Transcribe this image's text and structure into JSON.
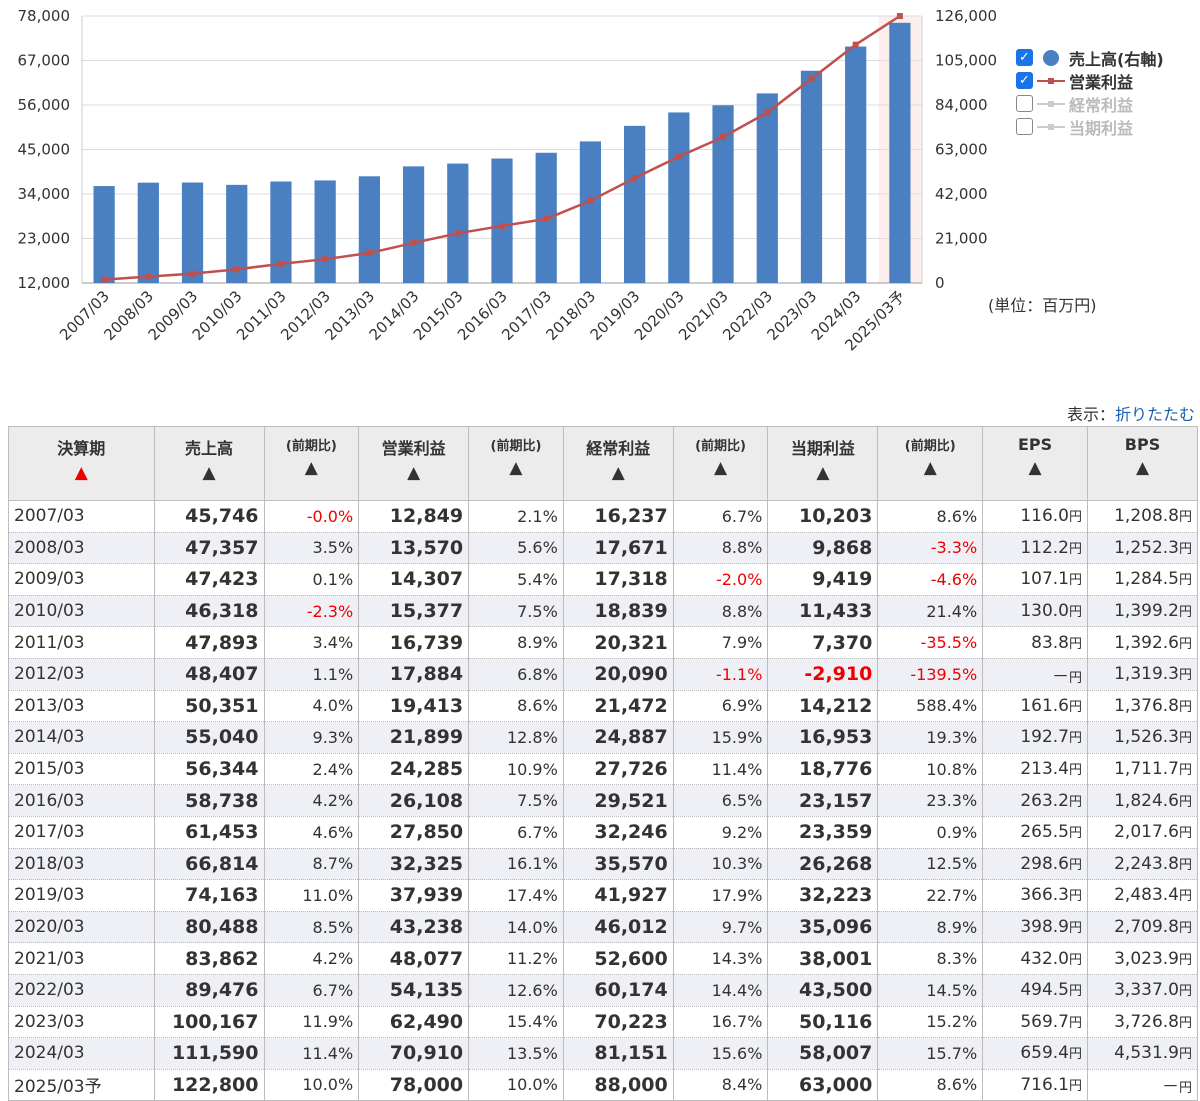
{
  "chart_data": {
    "type": "bar",
    "categories": [
      "2007/03",
      "2008/03",
      "2009/03",
      "2010/03",
      "2011/03",
      "2012/03",
      "2013/03",
      "2014/03",
      "2015/03",
      "2016/03",
      "2017/03",
      "2018/03",
      "2019/03",
      "2020/03",
      "2021/03",
      "2022/03",
      "2023/03",
      "2024/03",
      "2025/03予"
    ],
    "left_axis": {
      "ticks": [
        "78,000",
        "67,000",
        "56,000",
        "45,000",
        "34,000",
        "23,000",
        "12,000"
      ],
      "range": [
        12000,
        78000
      ]
    },
    "right_axis": {
      "ticks": [
        "126,000",
        "105,000",
        "84,000",
        "63,000",
        "42,000",
        "21,000",
        "0"
      ],
      "range": [
        0,
        126000
      ]
    },
    "series": [
      {
        "name": "売上高(右軸)",
        "axis": "right",
        "type": "bar",
        "color": "#4a7fc1",
        "values": [
          45746,
          47357,
          47423,
          46318,
          47893,
          48407,
          50351,
          55040,
          56344,
          58738,
          61453,
          66814,
          74163,
          80488,
          83862,
          89476,
          100167,
          111590,
          122800
        ]
      },
      {
        "name": "営業利益",
        "axis": "left",
        "type": "line",
        "color": "#c0504d",
        "values": [
          12849,
          13570,
          14307,
          15377,
          16739,
          17884,
          19413,
          21899,
          24285,
          26108,
          27850,
          32325,
          37939,
          43238,
          48077,
          54135,
          62490,
          70910,
          78000
        ]
      }
    ],
    "legend": [
      {
        "label": "売上高(右軸)",
        "checked": true,
        "symbol": "dot",
        "color": "#4a7fc1"
      },
      {
        "label": "営業利益",
        "checked": true,
        "symbol": "line",
        "color": "#c0504d"
      },
      {
        "label": "経常利益",
        "checked": false,
        "symbol": "line",
        "color": "#cccccc"
      },
      {
        "label": "当期利益",
        "checked": false,
        "symbol": "line",
        "color": "#cccccc"
      }
    ],
    "highlight_category": "2025/03予",
    "unit_label": "(単位：百万円)"
  },
  "view": {
    "label": "表示：",
    "link": "折りたたむ"
  },
  "table": {
    "headers": [
      "決算期",
      "売上高",
      "(前期比)",
      "営業利益",
      "(前期比)",
      "経常利益",
      "(前期比)",
      "当期利益",
      "(前期比)",
      "EPS",
      "BPS"
    ],
    "sort_arrow": "▲",
    "rows": [
      [
        "2007/03",
        "45,746",
        "-0.0%",
        "12,849",
        "2.1%",
        "16,237",
        "6.7%",
        "10,203",
        "8.6%",
        "116.0",
        "1,208.8"
      ],
      [
        "2008/03",
        "47,357",
        "3.5%",
        "13,570",
        "5.6%",
        "17,671",
        "8.8%",
        "9,868",
        "-3.3%",
        "112.2",
        "1,252.3"
      ],
      [
        "2009/03",
        "47,423",
        "0.1%",
        "14,307",
        "5.4%",
        "17,318",
        "-2.0%",
        "9,419",
        "-4.6%",
        "107.1",
        "1,284.5"
      ],
      [
        "2010/03",
        "46,318",
        "-2.3%",
        "15,377",
        "7.5%",
        "18,839",
        "8.8%",
        "11,433",
        "21.4%",
        "130.0",
        "1,399.2"
      ],
      [
        "2011/03",
        "47,893",
        "3.4%",
        "16,739",
        "8.9%",
        "20,321",
        "7.9%",
        "7,370",
        "-35.5%",
        "83.8",
        "1,392.6"
      ],
      [
        "2012/03",
        "48,407",
        "1.1%",
        "17,884",
        "6.8%",
        "20,090",
        "-1.1%",
        "-2,910",
        "-139.5%",
        "－",
        "1,319.3"
      ],
      [
        "2013/03",
        "50,351",
        "4.0%",
        "19,413",
        "8.6%",
        "21,472",
        "6.9%",
        "14,212",
        "588.4%",
        "161.6",
        "1,376.8"
      ],
      [
        "2014/03",
        "55,040",
        "9.3%",
        "21,899",
        "12.8%",
        "24,887",
        "15.9%",
        "16,953",
        "19.3%",
        "192.7",
        "1,526.3"
      ],
      [
        "2015/03",
        "56,344",
        "2.4%",
        "24,285",
        "10.9%",
        "27,726",
        "11.4%",
        "18,776",
        "10.8%",
        "213.4",
        "1,711.7"
      ],
      [
        "2016/03",
        "58,738",
        "4.2%",
        "26,108",
        "7.5%",
        "29,521",
        "6.5%",
        "23,157",
        "23.3%",
        "263.2",
        "1,824.6"
      ],
      [
        "2017/03",
        "61,453",
        "4.6%",
        "27,850",
        "6.7%",
        "32,246",
        "9.2%",
        "23,359",
        "0.9%",
        "265.5",
        "2,017.6"
      ],
      [
        "2018/03",
        "66,814",
        "8.7%",
        "32,325",
        "16.1%",
        "35,570",
        "10.3%",
        "26,268",
        "12.5%",
        "298.6",
        "2,243.8"
      ],
      [
        "2019/03",
        "74,163",
        "11.0%",
        "37,939",
        "17.4%",
        "41,927",
        "17.9%",
        "32,223",
        "22.7%",
        "366.3",
        "2,483.4"
      ],
      [
        "2020/03",
        "80,488",
        "8.5%",
        "43,238",
        "14.0%",
        "46,012",
        "9.7%",
        "35,096",
        "8.9%",
        "398.9",
        "2,709.8"
      ],
      [
        "2021/03",
        "83,862",
        "4.2%",
        "48,077",
        "11.2%",
        "52,600",
        "14.3%",
        "38,001",
        "8.3%",
        "432.0",
        "3,023.9"
      ],
      [
        "2022/03",
        "89,476",
        "6.7%",
        "54,135",
        "12.6%",
        "60,174",
        "14.4%",
        "43,500",
        "14.5%",
        "494.5",
        "3,337.0"
      ],
      [
        "2023/03",
        "100,167",
        "11.9%",
        "62,490",
        "15.4%",
        "70,223",
        "16.7%",
        "50,116",
        "15.2%",
        "569.7",
        "3,726.8"
      ],
      [
        "2024/03",
        "111,590",
        "11.4%",
        "70,910",
        "13.5%",
        "81,151",
        "15.6%",
        "58,007",
        "15.7%",
        "659.4",
        "4,531.9"
      ],
      [
        "2025/03予",
        "122,800",
        "10.0%",
        "78,000",
        "10.0%",
        "88,000",
        "8.4%",
        "63,000",
        "8.6%",
        "716.1",
        "－"
      ]
    ],
    "yen": "円"
  }
}
